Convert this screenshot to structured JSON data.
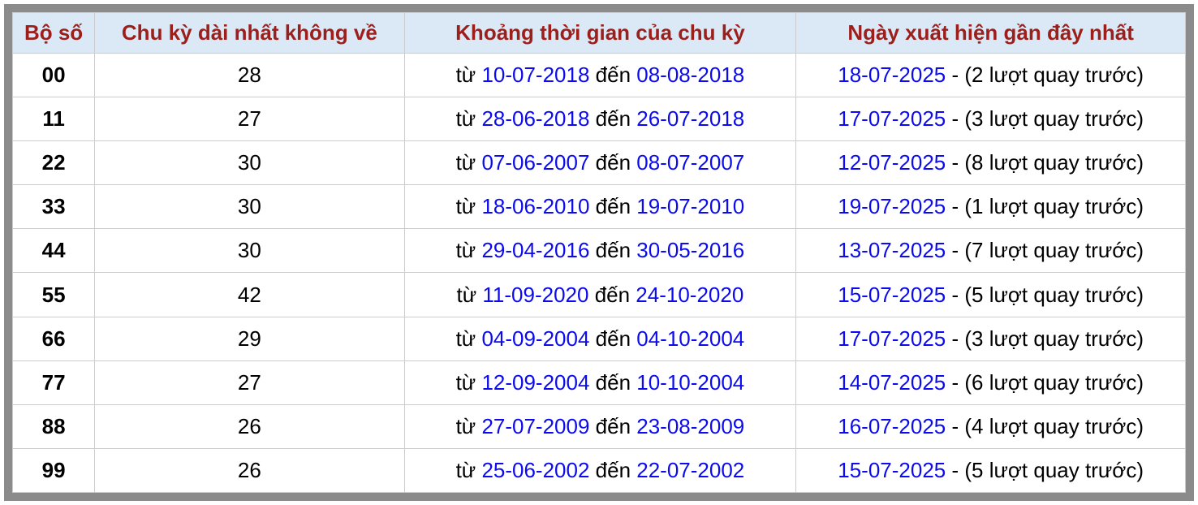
{
  "colors": {
    "header_bg": "#dae9f5",
    "header_text": "#9c1f1c",
    "link_blue": "#0b0bee",
    "body_text": "#000000",
    "cell_border": "#cccccc",
    "frame_gray": "#8b8b8b"
  },
  "table": {
    "columns": [
      {
        "label": "Bộ số"
      },
      {
        "label": "Chu kỳ dài nhất không về"
      },
      {
        "label": "Khoảng thời gian của chu kỳ"
      },
      {
        "label": "Ngày xuất hiện gần đây nhất"
      }
    ],
    "range_prefix": "từ ",
    "range_separator": " đến ",
    "rows": [
      {
        "pair": "00",
        "cycle": "28",
        "from": "10-07-2018",
        "to": "08-08-2018",
        "recent": "18-07-2025",
        "recent_tail": " - (2 lượt quay trước)"
      },
      {
        "pair": "11",
        "cycle": "27",
        "from": "28-06-2018",
        "to": "26-07-2018",
        "recent": "17-07-2025",
        "recent_tail": " - (3 lượt quay trước)"
      },
      {
        "pair": "22",
        "cycle": "30",
        "from": "07-06-2007",
        "to": "08-07-2007",
        "recent": "12-07-2025",
        "recent_tail": " - (8 lượt quay trước)"
      },
      {
        "pair": "33",
        "cycle": "30",
        "from": "18-06-2010",
        "to": "19-07-2010",
        "recent": "19-07-2025",
        "recent_tail": " - (1 lượt quay trước)"
      },
      {
        "pair": "44",
        "cycle": "30",
        "from": "29-04-2016",
        "to": "30-05-2016",
        "recent": "13-07-2025",
        "recent_tail": " - (7 lượt quay trước)"
      },
      {
        "pair": "55",
        "cycle": "42",
        "from": "11-09-2020",
        "to": "24-10-2020",
        "recent": "15-07-2025",
        "recent_tail": " - (5 lượt quay trước)"
      },
      {
        "pair": "66",
        "cycle": "29",
        "from": "04-09-2004",
        "to": "04-10-2004",
        "recent": "17-07-2025",
        "recent_tail": " - (3 lượt quay trước)"
      },
      {
        "pair": "77",
        "cycle": "27",
        "from": "12-09-2004",
        "to": "10-10-2004",
        "recent": "14-07-2025",
        "recent_tail": " - (6 lượt quay trước)"
      },
      {
        "pair": "88",
        "cycle": "26",
        "from": "27-07-2009",
        "to": "23-08-2009",
        "recent": "16-07-2025",
        "recent_tail": " - (4 lượt quay trước)"
      },
      {
        "pair": "99",
        "cycle": "26",
        "from": "25-06-2002",
        "to": "22-07-2002",
        "recent": "15-07-2025",
        "recent_tail": " - (5 lượt quay trước)"
      }
    ]
  }
}
